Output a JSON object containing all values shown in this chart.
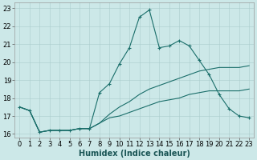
{
  "xlabel": "Humidex (Indice chaleur)",
  "x_ticks": [
    0,
    1,
    2,
    3,
    4,
    5,
    6,
    7,
    8,
    9,
    10,
    11,
    12,
    13,
    14,
    15,
    16,
    17,
    18,
    19,
    20,
    21,
    22,
    23
  ],
  "xlim": [
    -0.5,
    23.5
  ],
  "ylim": [
    15.8,
    23.3
  ],
  "y_ticks": [
    16,
    17,
    18,
    19,
    20,
    21,
    22,
    23
  ],
  "bg_color": "#cce8e8",
  "grid_color": "#aacccc",
  "line_color": "#1a6e6a",
  "series": [
    {
      "x": [
        0,
        1,
        2,
        3,
        4,
        5,
        6,
        7,
        8,
        9,
        10,
        11,
        12,
        13,
        14,
        15,
        16,
        17,
        18,
        19,
        20,
        21,
        22,
        23
      ],
      "y": [
        17.5,
        17.3,
        16.1,
        16.2,
        16.2,
        16.2,
        16.3,
        16.3,
        18.3,
        18.8,
        19.9,
        20.8,
        22.5,
        22.9,
        20.8,
        20.9,
        21.2,
        20.9,
        20.1,
        19.3,
        18.2,
        17.4,
        17.0,
        16.9
      ],
      "marker": true
    },
    {
      "x": [
        0,
        1,
        2,
        3,
        4,
        5,
        6,
        7,
        8,
        9,
        10,
        11,
        12,
        13,
        14,
        15,
        16,
        17,
        18,
        19,
        20,
        21,
        22,
        23
      ],
      "y": [
        17.5,
        17.3,
        16.1,
        16.2,
        16.2,
        16.2,
        16.3,
        16.3,
        16.6,
        17.1,
        17.5,
        17.8,
        18.2,
        18.5,
        18.7,
        18.9,
        19.1,
        19.3,
        19.5,
        19.6,
        19.7,
        19.7,
        19.7,
        19.8
      ],
      "marker": false
    },
    {
      "x": [
        0,
        1,
        2,
        3,
        4,
        5,
        6,
        7,
        8,
        9,
        10,
        11,
        12,
        13,
        14,
        15,
        16,
        17,
        18,
        19,
        20,
        21,
        22,
        23
      ],
      "y": [
        17.5,
        17.3,
        16.1,
        16.2,
        16.2,
        16.2,
        16.3,
        16.3,
        16.6,
        16.9,
        17.0,
        17.2,
        17.4,
        17.6,
        17.8,
        17.9,
        18.0,
        18.2,
        18.3,
        18.4,
        18.4,
        18.4,
        18.4,
        18.5
      ],
      "marker": false
    }
  ],
  "tick_fontsize": 6,
  "xlabel_fontsize": 7,
  "linewidth": 0.8,
  "markersize": 3.5,
  "markeredgewidth": 0.8
}
